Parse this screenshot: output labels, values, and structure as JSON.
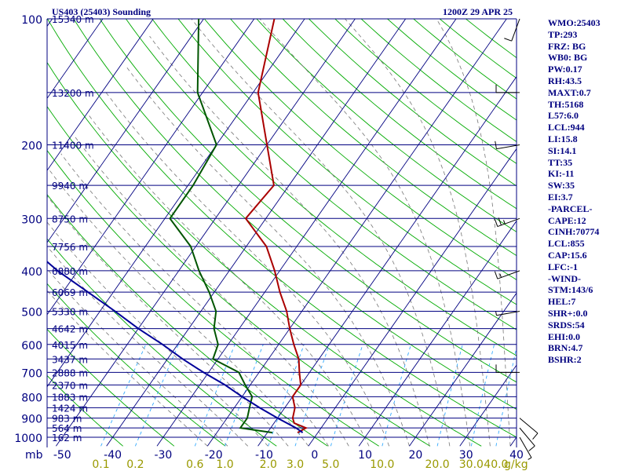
{
  "chart_data": {
    "type": "skew-t log-p sounding",
    "title": "US403 (25403) Sounding",
    "timestamp": "1200Z 29 APR 25",
    "y_axis": {
      "unit_label": "mb",
      "scale": "log",
      "range_hpa": [
        1000,
        100
      ],
      "pressure_ticks": [
        1000,
        900,
        800,
        700,
        600,
        500,
        400,
        300,
        200,
        100
      ]
    },
    "x_axis": {
      "temperature_ticks": [
        -50,
        -40,
        -30,
        -20,
        -10,
        0,
        10,
        20,
        30,
        40
      ],
      "temperature_range_at_1000hpa": [
        -53,
        40
      ]
    },
    "mixing_ratio_axis": {
      "unit_label": "g/kg",
      "labels": [
        "0.1",
        "0.2",
        "0.6",
        "1.0",
        "2.0",
        "3.0",
        "5.0",
        "10.0",
        "20.0",
        "30.0",
        "40.0"
      ]
    },
    "height_labels": [
      {
        "hpa": 100,
        "text": "15340 m"
      },
      {
        "hpa": 150,
        "text": "13200 m"
      },
      {
        "hpa": 200,
        "text": "11400 m"
      },
      {
        "hpa": 250,
        "text": "9940 m"
      },
      {
        "hpa": 300,
        "text": "8750 m"
      },
      {
        "hpa": 350,
        "text": "7756 m"
      },
      {
        "hpa": 400,
        "text": "6880 m"
      },
      {
        "hpa": 450,
        "text": "6069 m"
      },
      {
        "hpa": 500,
        "text": "5330 m"
      },
      {
        "hpa": 550,
        "text": "4642 m"
      },
      {
        "hpa": 600,
        "text": "4015 m"
      },
      {
        "hpa": 650,
        "text": "3437 m"
      },
      {
        "hpa": 700,
        "text": "2888 m"
      },
      {
        "hpa": 750,
        "text": "2370 m"
      },
      {
        "hpa": 800,
        "text": "1883 m"
      },
      {
        "hpa": 850,
        "text": "1424 m"
      },
      {
        "hpa": 900,
        "text": "983 m"
      },
      {
        "hpa": 950,
        "text": "564 m"
      },
      {
        "hpa": 1000,
        "text": "162 m"
      }
    ],
    "series": [
      {
        "name": "Temperature",
        "color": "#aa0000",
        "points": [
          [
            975,
            -4
          ],
          [
            950,
            -3
          ],
          [
            925,
            -6
          ],
          [
            900,
            -7
          ],
          [
            850,
            -8
          ],
          [
            800,
            -10
          ],
          [
            750,
            -10
          ],
          [
            700,
            -12
          ],
          [
            650,
            -14
          ],
          [
            600,
            -17
          ],
          [
            550,
            -20
          ],
          [
            500,
            -23
          ],
          [
            450,
            -27
          ],
          [
            400,
            -31
          ],
          [
            350,
            -36
          ],
          [
            300,
            -44
          ],
          [
            250,
            -43
          ],
          [
            200,
            -50
          ],
          [
            150,
            -59
          ],
          [
            100,
            -66
          ]
        ]
      },
      {
        "name": "Dewpoint",
        "color": "#005500",
        "points": [
          [
            975,
            -9
          ],
          [
            950,
            -16
          ],
          [
            900,
            -16
          ],
          [
            850,
            -17
          ],
          [
            800,
            -18
          ],
          [
            750,
            -21
          ],
          [
            700,
            -24
          ],
          [
            650,
            -31
          ],
          [
            600,
            -32
          ],
          [
            550,
            -35
          ],
          [
            500,
            -37
          ],
          [
            450,
            -41
          ],
          [
            400,
            -46
          ],
          [
            350,
            -51
          ],
          [
            300,
            -59
          ],
          [
            250,
            -59
          ],
          [
            200,
            -60
          ],
          [
            150,
            -71
          ],
          [
            100,
            -81
          ]
        ]
      },
      {
        "name": "Parcel",
        "color": "#000099",
        "points": [
          [
            975,
            -3
          ],
          [
            950,
            -5
          ],
          [
            900,
            -10
          ],
          [
            850,
            -15
          ],
          [
            800,
            -20
          ],
          [
            750,
            -25
          ],
          [
            700,
            -31
          ],
          [
            650,
            -37
          ],
          [
            600,
            -43
          ],
          [
            550,
            -50
          ],
          [
            500,
            -57
          ],
          [
            450,
            -65
          ],
          [
            400,
            -74
          ],
          [
            350,
            -83
          ],
          [
            300,
            -93
          ],
          [
            250,
            -104
          ],
          [
            200,
            -116
          ],
          [
            150,
            -130
          ],
          [
            110,
            -143
          ]
        ]
      }
    ],
    "wind_barbs": [
      {
        "hpa": 1000,
        "dir": 150,
        "kt": 5
      },
      {
        "hpa": 950,
        "dir": 140,
        "kt": 10
      },
      {
        "hpa": 900,
        "dir": 130,
        "kt": 10
      },
      {
        "hpa": 700,
        "dir": 270,
        "kt": 10
      },
      {
        "hpa": 500,
        "dir": 260,
        "kt": 5
      },
      {
        "hpa": 400,
        "dir": 250,
        "kt": 15
      },
      {
        "hpa": 300,
        "dir": 250,
        "kt": 25
      },
      {
        "hpa": 200,
        "dir": 260,
        "kt": 10
      },
      {
        "hpa": 150,
        "dir": 270,
        "kt": 10
      },
      {
        "hpa": 100,
        "dir": 200,
        "kt": 10
      }
    ],
    "grid": true,
    "colors": {
      "isobar": "#000080",
      "isotherm": "#000080",
      "dry_adiabat": "#00aa00",
      "mixing_ratio": "#33aaff",
      "moist_adiabat": "#777777",
      "label": "#000080",
      "mixing_label": "#999900"
    }
  },
  "stats": [
    "WMO:25403",
    "TP:293",
    "FRZ: BG",
    "WB0: BG",
    "PW:0.17",
    "RH:43.5",
    "MAXT:0.7",
    "TH:5168",
    "L57:6.0",
    "LCL:944",
    "LI:15.8",
    "SI:14.1",
    "TT:35",
    "KI:-11",
    "SW:35",
    "EI:3.7",
    "-PARCEL-",
    "CAPE:12",
    "CINH:70774",
    "LCL:855",
    "CAP:15.6",
    "LFC:-1",
    "-WIND-",
    "STM:143/6",
    "HEL:7",
    "SHR+:0.0",
    "SRDS:54",
    "EHI:0.0",
    "BRN:4.7",
    "BSHR:2"
  ]
}
